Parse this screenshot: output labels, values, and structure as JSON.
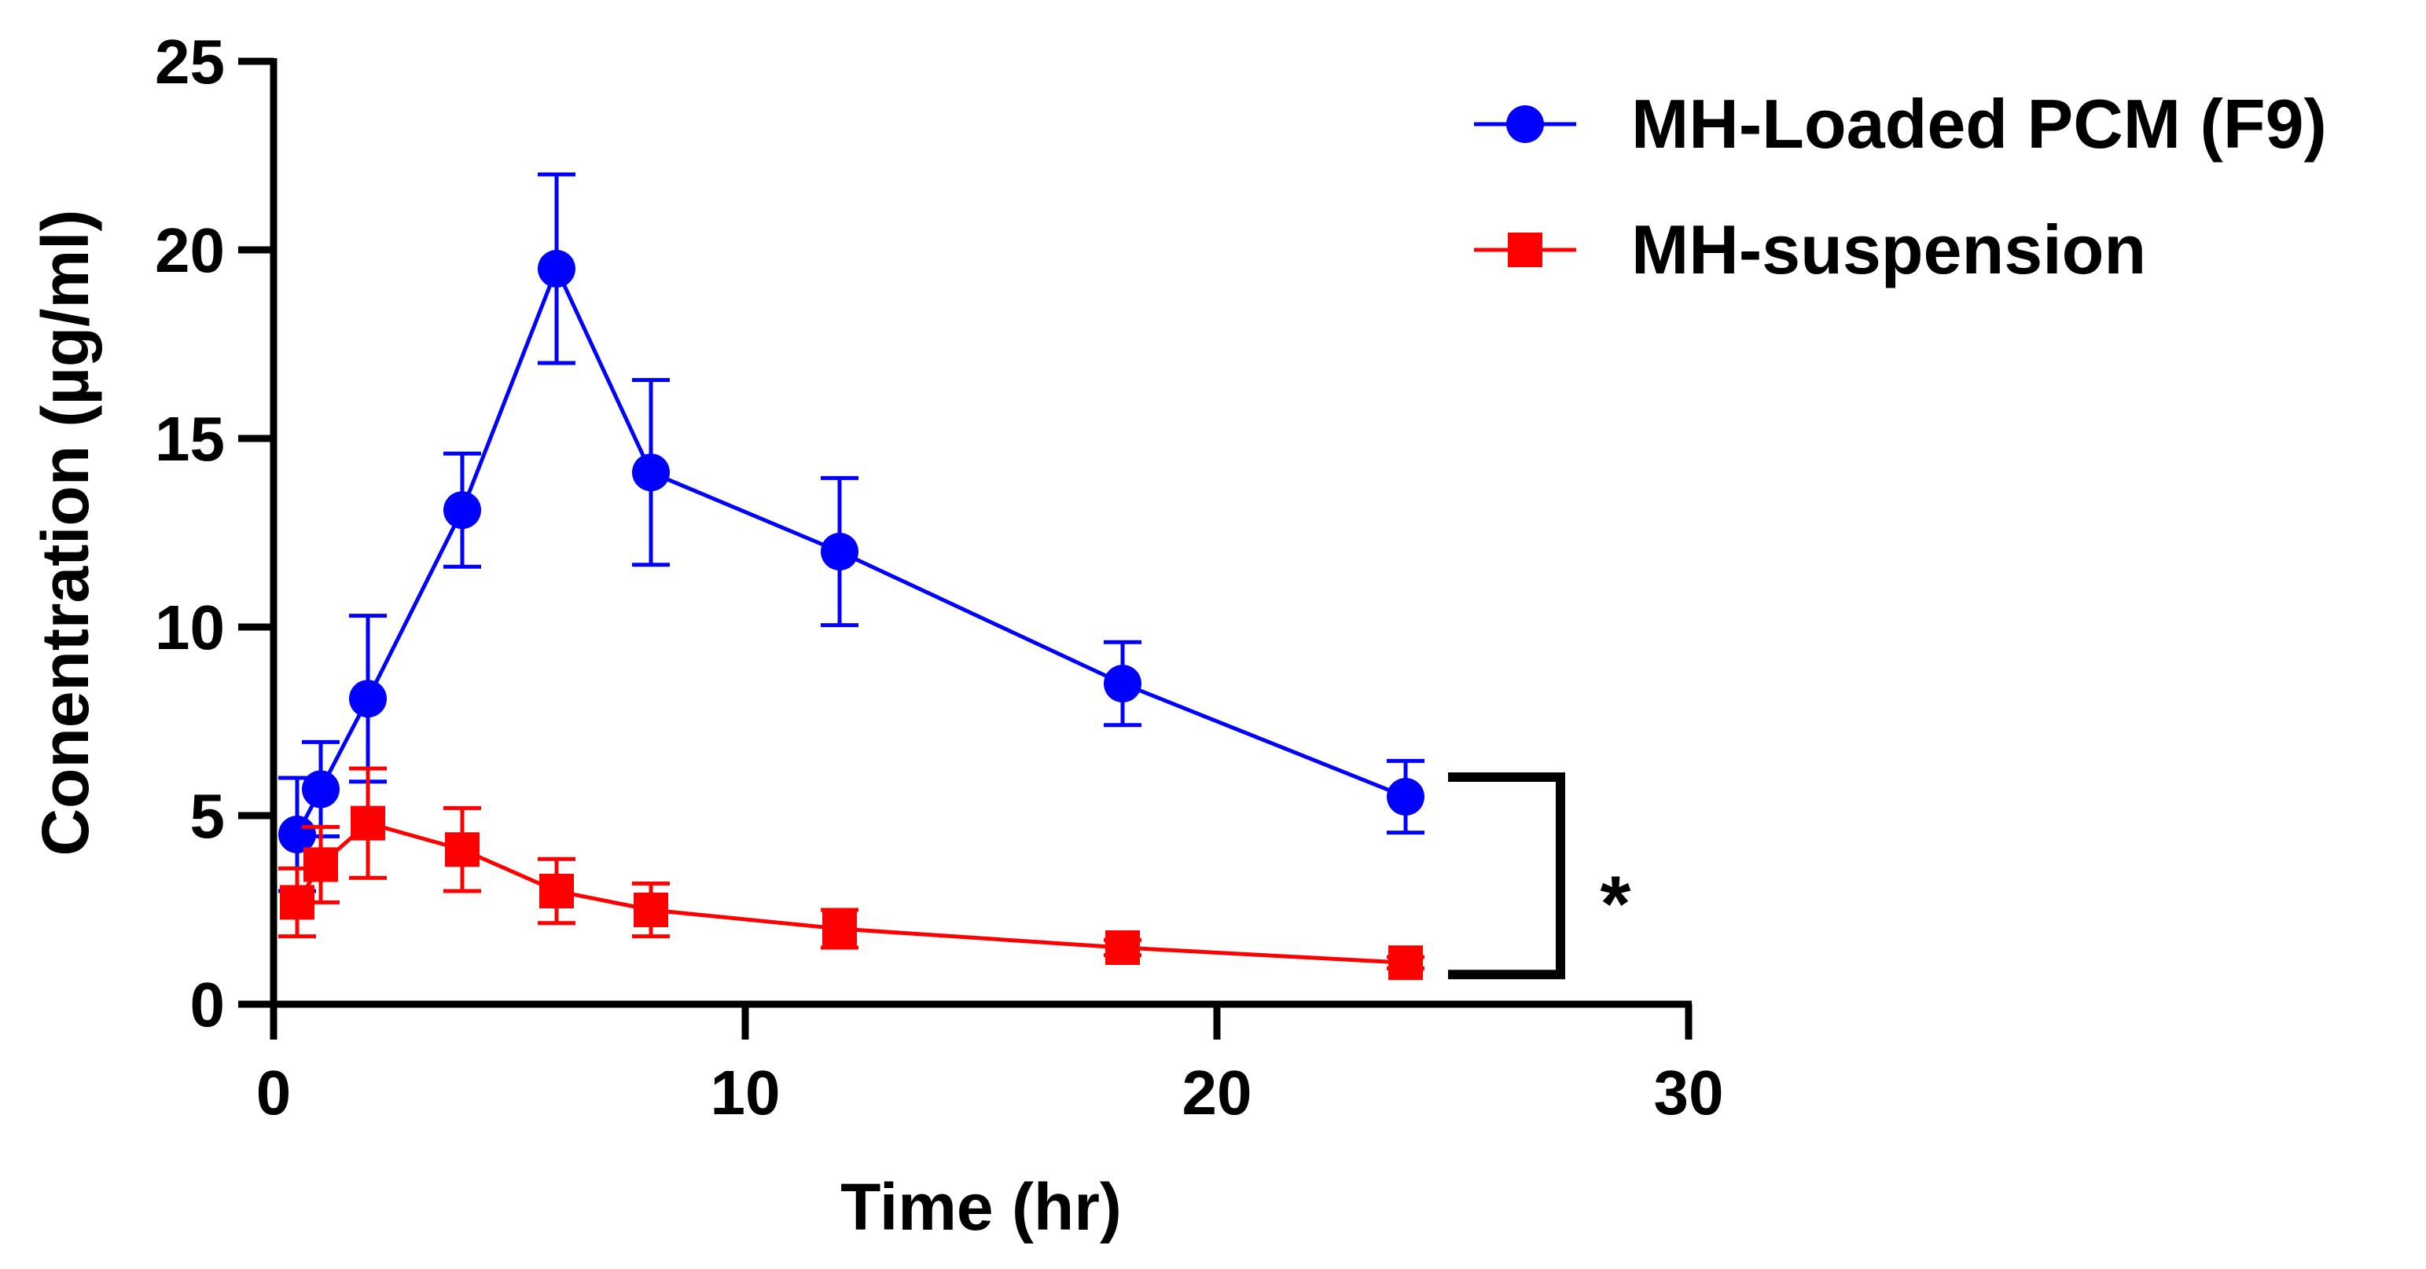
{
  "chart_data": {
    "type": "line",
    "title": "",
    "xlabel": "Time (hr)",
    "ylabel": "Conentration (µg/ml)",
    "xlim": [
      0,
      30
    ],
    "ylim": [
      0,
      25
    ],
    "xticks": [
      0,
      10,
      20,
      30
    ],
    "yticks": [
      0,
      5,
      10,
      15,
      20,
      25
    ],
    "grid": false,
    "legend_position": "top-right",
    "series": [
      {
        "name": "MH-Loaded PCM (F9)",
        "color": "#0000ff",
        "marker": "circle",
        "x": [
          0.5,
          1,
          2,
          4,
          6,
          8,
          12,
          18,
          24
        ],
        "y": [
          4.5,
          5.7,
          8.1,
          13.1,
          19.5,
          14.1,
          12.0,
          8.5,
          5.5
        ],
        "error": [
          1.5,
          1.25,
          2.2,
          1.5,
          2.5,
          2.45,
          1.95,
          1.1,
          0.95
        ]
      },
      {
        "name": "MH-suspension",
        "color": "#ff0000",
        "marker": "square",
        "x": [
          0.5,
          1,
          2,
          4,
          6,
          8,
          12,
          18,
          24
        ],
        "y": [
          2.7,
          3.7,
          4.8,
          4.1,
          3.0,
          2.5,
          2.0,
          1.5,
          1.1
        ],
        "error": [
          0.9,
          1.0,
          1.45,
          1.1,
          0.85,
          0.7,
          0.5,
          0.2,
          0.15
        ]
      }
    ],
    "annotations": [
      {
        "text": "*",
        "type": "significance-bracket"
      }
    ]
  }
}
